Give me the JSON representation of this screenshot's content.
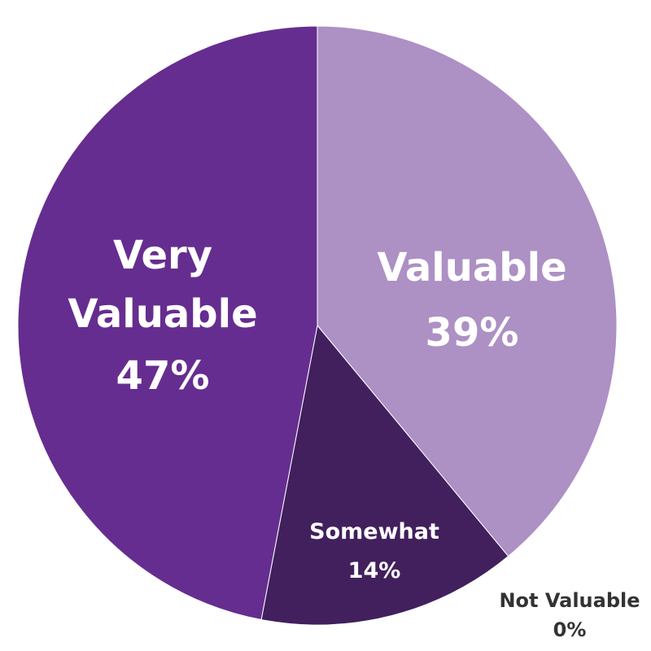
{
  "chart_data": {
    "type": "pie",
    "slices": [
      {
        "label": "Valuable",
        "value": 39,
        "display": "39%",
        "color": "#ad90c4"
      },
      {
        "label": "Somewhat",
        "value": 14,
        "display": "14%",
        "color": "#41205d"
      },
      {
        "label": "Not Valuable",
        "value": 0,
        "display": "0%",
        "color": "#ffffff"
      },
      {
        "label": "Very Valuable",
        "value": 47,
        "display": "47%",
        "color": "#662d90"
      }
    ],
    "label_colors": {
      "inside": "#ffffff",
      "outside": "#333333"
    }
  }
}
